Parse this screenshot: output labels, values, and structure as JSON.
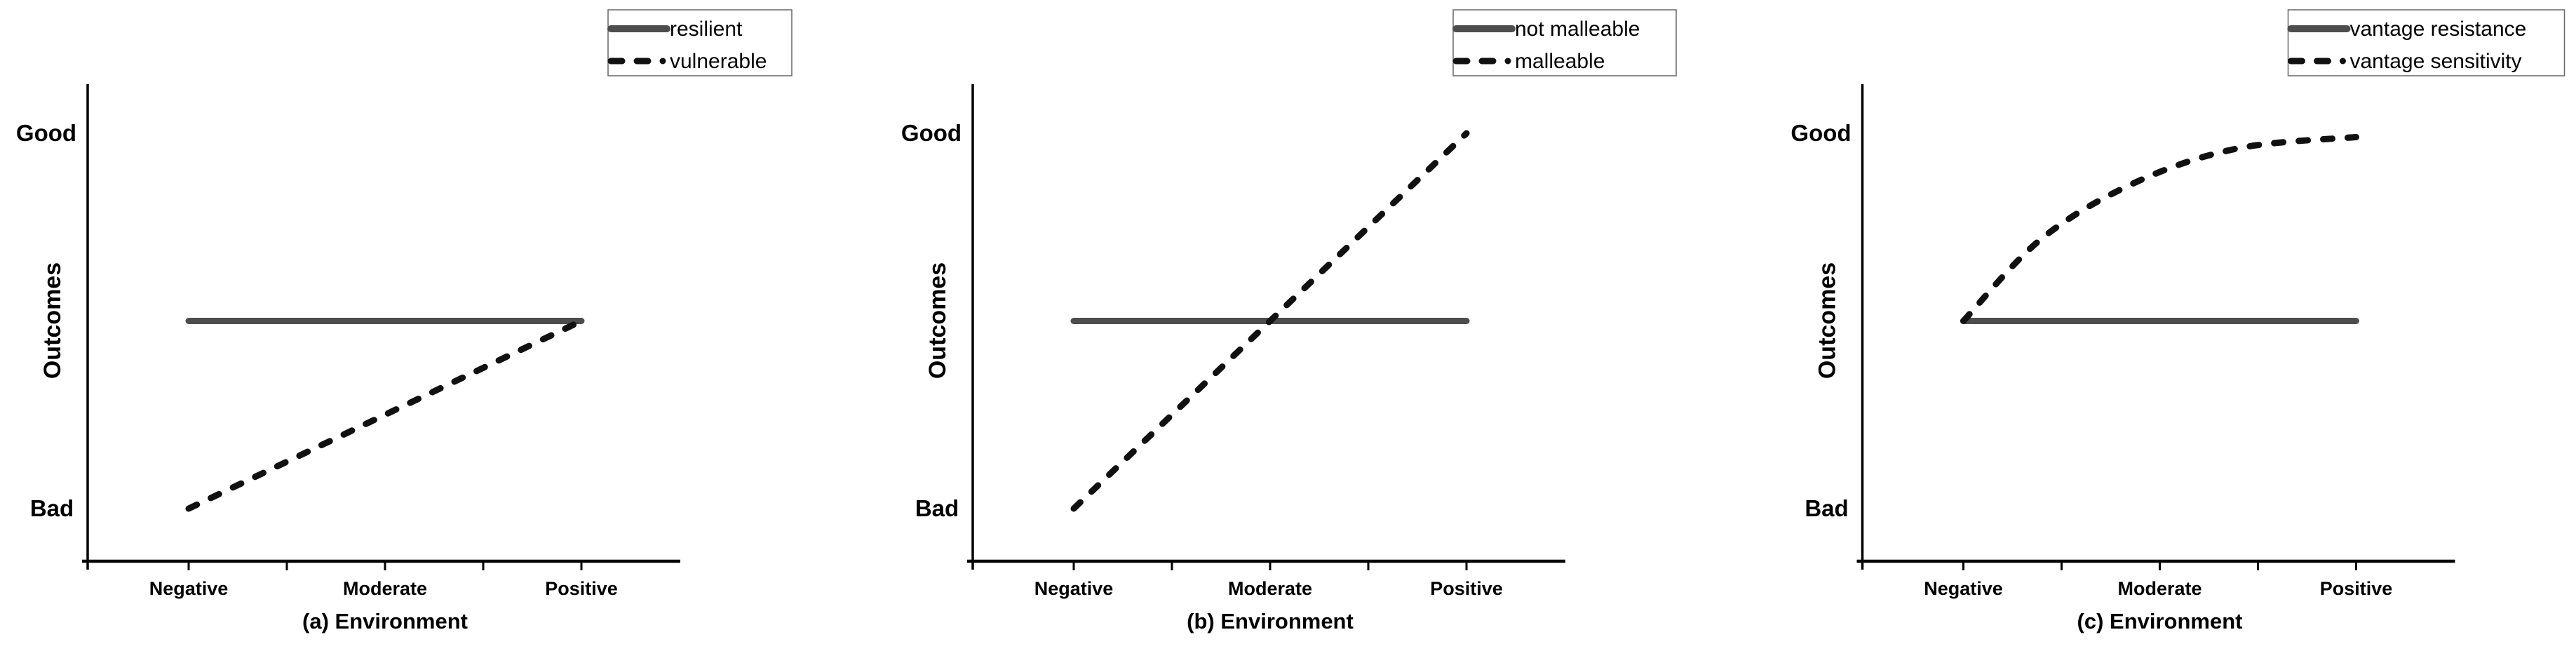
{
  "chart_data": [
    {
      "type": "line",
      "panel": "a",
      "xlabel": "(a) Environment",
      "ylabel": "Outcomes",
      "x_tick_labels": [
        "Negative",
        "Moderate",
        "Positive"
      ],
      "y_axis_top_label": "Good",
      "y_axis_bottom_label": "Bad",
      "axis_scale": "qualitative; x normalized 0=Negative, 0.5=Moderate, 1=Positive; y normalized 0=Bad, 0.5=midline, 1=Good",
      "legend_position": "top-right",
      "grid": false,
      "series": [
        {
          "name": "resilient",
          "line_style": "solid",
          "color": "#4d4d4d",
          "points": [
            [
              0,
              0.5
            ],
            [
              1,
              0.5
            ]
          ]
        },
        {
          "name": "vulnerable",
          "line_style": "dashed",
          "color": "#111111",
          "points": [
            [
              0,
              0
            ],
            [
              1,
              0.5
            ]
          ]
        }
      ]
    },
    {
      "type": "line",
      "panel": "b",
      "xlabel": "(b) Environment",
      "ylabel": "Outcomes",
      "x_tick_labels": [
        "Negative",
        "Moderate",
        "Positive"
      ],
      "y_axis_top_label": "Good",
      "y_axis_bottom_label": "Bad",
      "axis_scale": "qualitative; x normalized 0=Negative, 0.5=Moderate, 1=Positive; y normalized 0=Bad, 0.5=midline, 1=Good",
      "legend_position": "top-right",
      "grid": false,
      "series": [
        {
          "name": "not malleable",
          "line_style": "solid",
          "color": "#4d4d4d",
          "points": [
            [
              0,
              0.5
            ],
            [
              1,
              0.5
            ]
          ]
        },
        {
          "name": "malleable",
          "line_style": "dashed",
          "color": "#111111",
          "points": [
            [
              0,
              0
            ],
            [
              1,
              1
            ]
          ]
        }
      ]
    },
    {
      "type": "line",
      "panel": "c",
      "xlabel": "(c) Environment",
      "ylabel": "Outcomes",
      "x_tick_labels": [
        "Negative",
        "Moderate",
        "Positive"
      ],
      "y_axis_top_label": "Good",
      "y_axis_bottom_label": "Bad",
      "axis_scale": "qualitative; x normalized 0=Negative, 0.5=Moderate, 1=Positive; y normalized 0=Bad, 0.5=midline, 1=Good",
      "legend_position": "top-right",
      "grid": false,
      "series": [
        {
          "name": "vantage resistance",
          "line_style": "solid",
          "color": "#4d4d4d",
          "points": [
            [
              0,
              0.5
            ],
            [
              1,
              0.5
            ]
          ]
        },
        {
          "name": "vantage sensitivity",
          "line_style": "dashed",
          "curve": "smooth",
          "color": "#111111",
          "points": [
            [
              0,
              0.5
            ],
            [
              0.2,
              0.72
            ],
            [
              0.44,
              0.87
            ],
            [
              0.7,
              0.96
            ],
            [
              1,
              0.99
            ]
          ]
        }
      ]
    }
  ],
  "colors": {
    "background": "#ffffff",
    "axis": "#000000",
    "text": "#000000",
    "solid_series": "#4d4d4d",
    "dashed_series": "#111111",
    "legend_border": "#666666"
  }
}
